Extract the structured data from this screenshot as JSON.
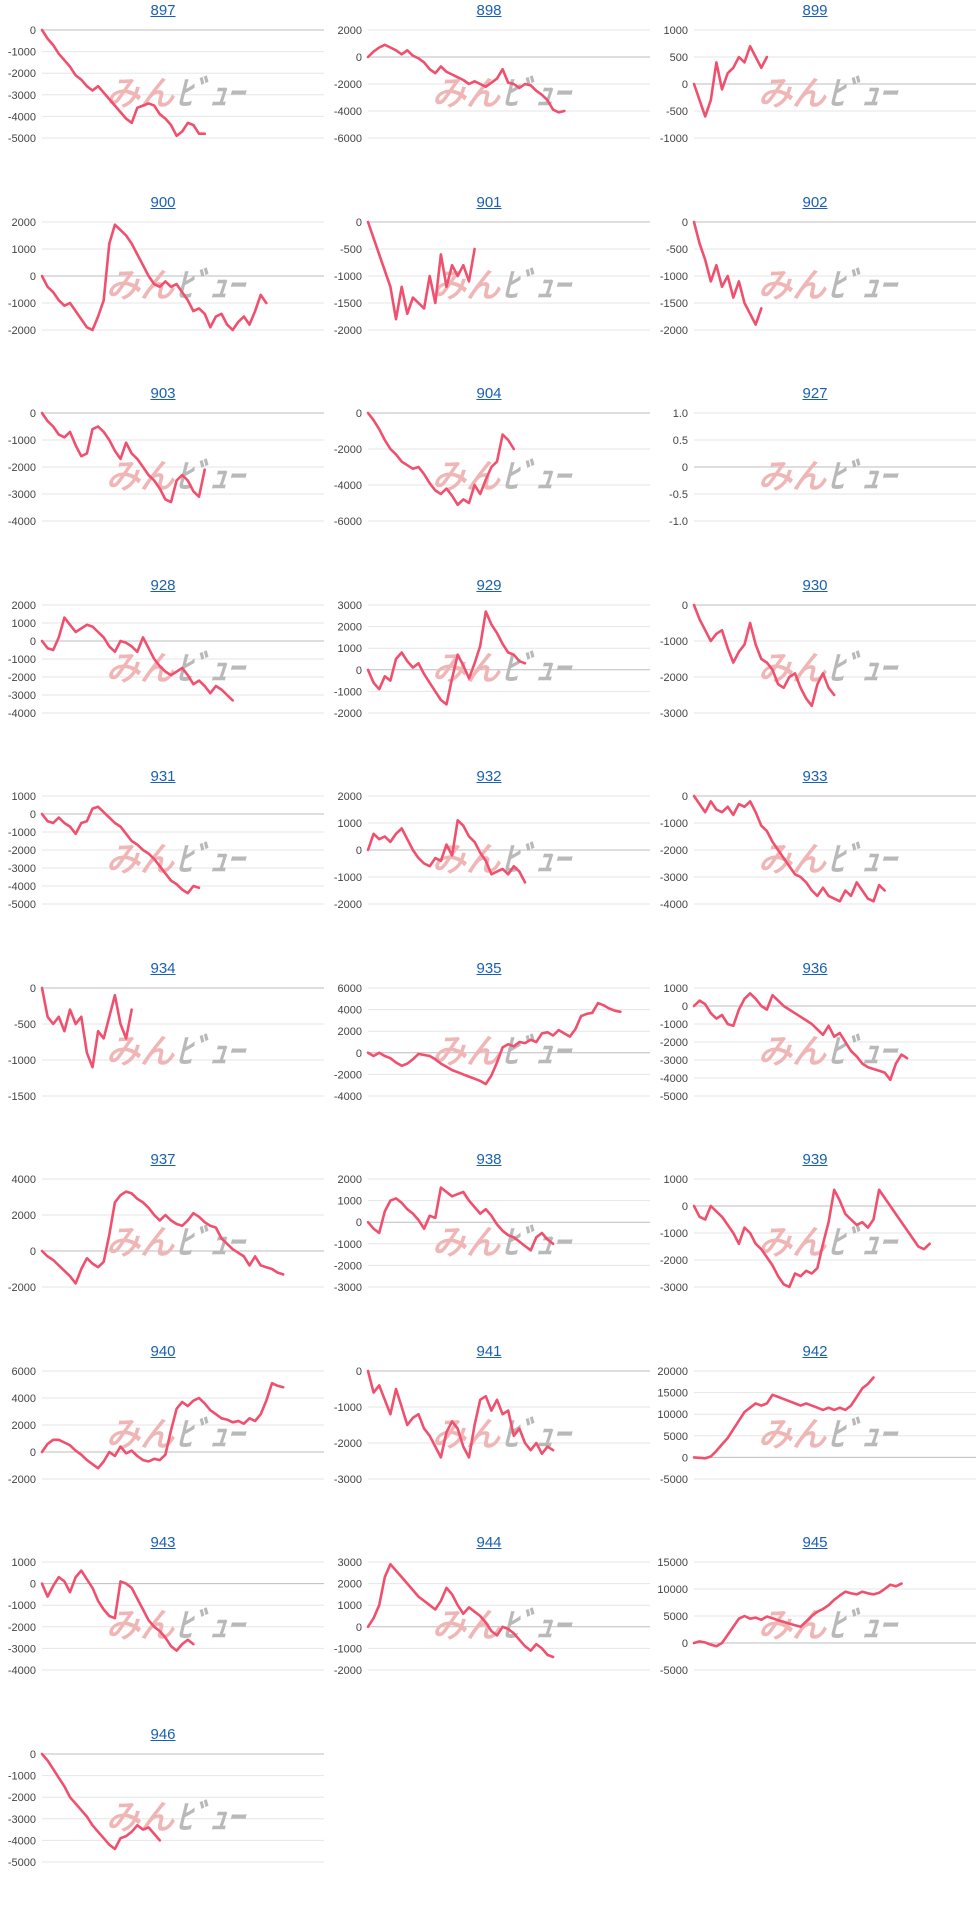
{
  "watermark": {
    "part1": "みん",
    "part2": "ﾋﾞｭｰ",
    "color1": "#f0b6b6",
    "color2": "#b9b9b9"
  },
  "line_color": "#f0506e",
  "chart_data": [
    {
      "type": "line",
      "title": "897",
      "yticks": [
        "0",
        "-1000",
        "-2000",
        "-3000",
        "-4000",
        "-5000"
      ],
      "ylim": [
        -5000,
        0
      ],
      "values": [
        0,
        -400,
        -700,
        -1100,
        -1400,
        -1700,
        -2100,
        -2300,
        -2600,
        -2800,
        -2600,
        -2900,
        -3200,
        -3500,
        -3800,
        -4100,
        -4300,
        -3600,
        -3500,
        -3400,
        -3500,
        -3900,
        -4100,
        -4400,
        -4900,
        -4700,
        -4300,
        -4400,
        -4800,
        -4800
      ]
    },
    {
      "type": "line",
      "title": "898",
      "yticks": [
        "2000",
        "0",
        "-2000",
        "-4000",
        "-6000"
      ],
      "ylim": [
        -6000,
        2000
      ],
      "values": [
        0,
        400,
        700,
        900,
        700,
        500,
        200,
        500,
        100,
        -100,
        -400,
        -900,
        -1200,
        -700,
        -1100,
        -1300,
        -1500,
        -1700,
        -2000,
        -1800,
        -2000,
        -2200,
        -1900,
        -1600,
        -900,
        -1900,
        -2000,
        -2300,
        -2000,
        -2100,
        -2500,
        -2800,
        -3200,
        -3900,
        -4100,
        -4000
      ]
    },
    {
      "type": "line",
      "title": "899",
      "yticks": [
        "1000",
        "500",
        "0",
        "-500",
        "-1000"
      ],
      "ylim": [
        -1000,
        1000
      ],
      "values": [
        0,
        -300,
        -600,
        -300,
        400,
        -100,
        200,
        300,
        500,
        400,
        700,
        500,
        300,
        500
      ]
    },
    {
      "type": "line",
      "title": "900",
      "yticks": [
        "2000",
        "1000",
        "0",
        "-1000",
        "-2000"
      ],
      "ylim": [
        -2000,
        2000
      ],
      "values": [
        0,
        -400,
        -600,
        -900,
        -1100,
        -1000,
        -1300,
        -1600,
        -1900,
        -2000,
        -1500,
        -900,
        1200,
        1900,
        1700,
        1500,
        1200,
        800,
        400,
        0,
        -300,
        -400,
        -200,
        -400,
        -300,
        -600,
        -900,
        -1300,
        -1200,
        -1400,
        -1900,
        -1500,
        -1400,
        -1800,
        -2000,
        -1700,
        -1500,
        -1800,
        -1300,
        -700,
        -1000
      ]
    },
    {
      "type": "line",
      "title": "901",
      "yticks": [
        "0",
        "-500",
        "-1000",
        "-1500",
        "-2000"
      ],
      "ylim": [
        -2000,
        0
      ],
      "values": [
        0,
        -300,
        -600,
        -900,
        -1200,
        -1800,
        -1200,
        -1700,
        -1400,
        -1500,
        -1600,
        -1000,
        -1500,
        -600,
        -1200,
        -800,
        -1000,
        -800,
        -1100,
        -500
      ]
    },
    {
      "type": "line",
      "title": "902",
      "yticks": [
        "0",
        "-500",
        "-1000",
        "-1500",
        "-2000"
      ],
      "ylim": [
        -2000,
        0
      ],
      "values": [
        0,
        -400,
        -700,
        -1100,
        -800,
        -1200,
        -1000,
        -1400,
        -1100,
        -1500,
        -1700,
        -1900,
        -1600
      ]
    },
    {
      "type": "line",
      "title": "903",
      "yticks": [
        "0",
        "-1000",
        "-2000",
        "-3000",
        "-4000"
      ],
      "ylim": [
        -4000,
        0
      ],
      "values": [
        0,
        -300,
        -500,
        -800,
        -900,
        -700,
        -1200,
        -1600,
        -1500,
        -600,
        -500,
        -700,
        -1000,
        -1400,
        -1700,
        -1100,
        -1500,
        -1700,
        -2000,
        -2300,
        -2500,
        -2800,
        -3200,
        -3300,
        -2500,
        -2300,
        -2500,
        -2900,
        -3100,
        -2100
      ]
    },
    {
      "type": "line",
      "title": "904",
      "yticks": [
        "0",
        "-2000",
        "-4000",
        "-6000"
      ],
      "ylim": [
        -6000,
        0
      ],
      "values": [
        0,
        -400,
        -900,
        -1500,
        -2000,
        -2300,
        -2700,
        -2900,
        -3100,
        -3000,
        -3400,
        -3900,
        -4300,
        -4500,
        -4200,
        -4600,
        -5100,
        -4800,
        -5000,
        -4000,
        -4500,
        -3700,
        -3000,
        -2700,
        -1200,
        -1500,
        -2000
      ]
    },
    {
      "type": "line",
      "title": "927",
      "yticks": [
        "1.0",
        "0.5",
        "0",
        "-0.5",
        "-1.0"
      ],
      "ylim": [
        -1,
        1
      ],
      "values": []
    },
    {
      "type": "line",
      "title": "928",
      "yticks": [
        "2000",
        "1000",
        "0",
        "-1000",
        "-2000",
        "-3000",
        "-4000"
      ],
      "ylim": [
        -4000,
        2000
      ],
      "values": [
        0,
        -400,
        -500,
        200,
        1300,
        900,
        500,
        700,
        900,
        800,
        500,
        200,
        -300,
        -600,
        0,
        -100,
        -300,
        -600,
        200,
        -400,
        -1000,
        -1400,
        -1700,
        -1900,
        -1700,
        -1500,
        -1900,
        -2400,
        -2200,
        -2500,
        -2900,
        -2500,
        -2700,
        -3000,
        -3300
      ]
    },
    {
      "type": "line",
      "title": "929",
      "yticks": [
        "3000",
        "2000",
        "1000",
        "0",
        "-1000",
        "-2000"
      ],
      "ylim": [
        -2000,
        3000
      ],
      "values": [
        0,
        -600,
        -900,
        -300,
        -500,
        500,
        800,
        400,
        100,
        300,
        -200,
        -600,
        -1000,
        -1400,
        -1600,
        -400,
        700,
        200,
        -400,
        300,
        1100,
        2700,
        2100,
        1700,
        1200,
        800,
        700,
        400,
        300
      ]
    },
    {
      "type": "line",
      "title": "930",
      "yticks": [
        "0",
        "-1000",
        "-2000",
        "-3000"
      ],
      "ylim": [
        -3000,
        0
      ],
      "values": [
        0,
        -400,
        -700,
        -1000,
        -800,
        -700,
        -1200,
        -1600,
        -1300,
        -1100,
        -500,
        -1100,
        -1500,
        -1600,
        -1800,
        -2200,
        -2300,
        -2000,
        -1900,
        -2300,
        -2600,
        -2800,
        -2200,
        -1900,
        -2300,
        -2500
      ]
    },
    {
      "type": "line",
      "title": "931",
      "yticks": [
        "1000",
        "0",
        "-1000",
        "-2000",
        "-3000",
        "-4000",
        "-5000"
      ],
      "ylim": [
        -5000,
        1000
      ],
      "values": [
        0,
        -400,
        -500,
        -200,
        -500,
        -700,
        -1100,
        -500,
        -400,
        300,
        400,
        100,
        -200,
        -500,
        -700,
        -1100,
        -1500,
        -1700,
        -2000,
        -2200,
        -2500,
        -2900,
        -3300,
        -3700,
        -3900,
        -4200,
        -4400,
        -4000,
        -4100
      ]
    },
    {
      "type": "line",
      "title": "932",
      "yticks": [
        "2000",
        "1000",
        "0",
        "-1000",
        "-2000"
      ],
      "ylim": [
        -2000,
        2000
      ],
      "values": [
        0,
        600,
        400,
        500,
        300,
        600,
        800,
        400,
        0,
        -300,
        -500,
        -600,
        -300,
        -400,
        200,
        -200,
        1100,
        900,
        500,
        300,
        -100,
        -400,
        -900,
        -800,
        -700,
        -900,
        -600,
        -800,
        -1200
      ]
    },
    {
      "type": "line",
      "title": "933",
      "yticks": [
        "0",
        "-1000",
        "-2000",
        "-3000",
        "-4000"
      ],
      "ylim": [
        -4000,
        0
      ],
      "values": [
        0,
        -300,
        -600,
        -200,
        -500,
        -600,
        -400,
        -700,
        -300,
        -400,
        -200,
        -600,
        -1100,
        -1300,
        -1700,
        -2000,
        -2300,
        -2600,
        -2900,
        -3000,
        -3200,
        -3500,
        -3700,
        -3400,
        -3700,
        -3800,
        -3900,
        -3500,
        -3700,
        -3200,
        -3500,
        -3800,
        -3900,
        -3300,
        -3500
      ]
    },
    {
      "type": "line",
      "title": "934",
      "yticks": [
        "0",
        "-500",
        "-1000",
        "-1500"
      ],
      "ylim": [
        -1500,
        0
      ],
      "values": [
        0,
        -400,
        -500,
        -400,
        -600,
        -300,
        -500,
        -400,
        -900,
        -1100,
        -600,
        -700,
        -400,
        -100,
        -500,
        -700,
        -300
      ]
    },
    {
      "type": "line",
      "title": "935",
      "yticks": [
        "6000",
        "4000",
        "2000",
        "0",
        "-2000",
        "-4000"
      ],
      "ylim": [
        -4000,
        6000
      ],
      "values": [
        0,
        -300,
        0,
        -300,
        -500,
        -900,
        -1200,
        -1000,
        -600,
        -100,
        -200,
        -300,
        -600,
        -1000,
        -1300,
        -1600,
        -1800,
        -2000,
        -2200,
        -2400,
        -2600,
        -2900,
        -2100,
        -900,
        500,
        800,
        600,
        1000,
        900,
        1200,
        1000,
        1800,
        1900,
        1600,
        2100,
        1800,
        1500,
        2200,
        3400,
        3600,
        3700,
        4600,
        4400,
        4100,
        3900,
        3800
      ]
    },
    {
      "type": "line",
      "title": "936",
      "yticks": [
        "1000",
        "0",
        "-1000",
        "-2000",
        "-3000",
        "-4000",
        "-5000"
      ],
      "ylim": [
        -5000,
        1000
      ],
      "values": [
        0,
        300,
        100,
        -400,
        -700,
        -500,
        -1000,
        -1100,
        -200,
        400,
        700,
        400,
        0,
        -200,
        600,
        300,
        0,
        -200,
        -400,
        -600,
        -800,
        -1000,
        -1300,
        -1600,
        -1100,
        -1700,
        -1500,
        -2000,
        -2500,
        -2800,
        -3200,
        -3400,
        -3500,
        -3600,
        -3700,
        -4100,
        -3200,
        -2700,
        -2900
      ]
    },
    {
      "type": "line",
      "title": "937",
      "yticks": [
        "4000",
        "2000",
        "0",
        "-2000"
      ],
      "ylim": [
        -2000,
        4000
      ],
      "values": [
        0,
        -300,
        -500,
        -800,
        -1100,
        -1400,
        -1800,
        -1000,
        -400,
        -700,
        -900,
        -600,
        900,
        2700,
        3100,
        3300,
        3200,
        2900,
        2700,
        2400,
        2000,
        1700,
        2000,
        1700,
        1500,
        1400,
        1700,
        2100,
        1900,
        1600,
        1400,
        1300,
        700,
        400,
        100,
        -100,
        -300,
        -800,
        -300,
        -800,
        -900,
        -1000,
        -1200,
        -1300
      ]
    },
    {
      "type": "line",
      "title": "938",
      "yticks": [
        "2000",
        "1000",
        "0",
        "-1000",
        "-2000",
        "-3000"
      ],
      "ylim": [
        -3000,
        2000
      ],
      "values": [
        0,
        -300,
        -500,
        500,
        1000,
        1100,
        900,
        600,
        400,
        100,
        -300,
        300,
        200,
        1600,
        1400,
        1200,
        1300,
        1400,
        1000,
        700,
        400,
        600,
        300,
        -100,
        -400,
        -600,
        -700,
        -900,
        -1100,
        -1300,
        -700,
        -500,
        -800,
        -1000
      ]
    },
    {
      "type": "line",
      "title": "939",
      "yticks": [
        "1000",
        "0",
        "-1000",
        "-2000",
        "-3000"
      ],
      "ylim": [
        -3000,
        1000
      ],
      "values": [
        0,
        -400,
        -500,
        0,
        -200,
        -400,
        -700,
        -1000,
        -1400,
        -800,
        -1000,
        -1400,
        -1600,
        -1900,
        -2200,
        -2600,
        -2900,
        -3000,
        -2500,
        -2600,
        -2400,
        -2500,
        -2300,
        -1400,
        -600,
        600,
        200,
        -300,
        -500,
        -700,
        -600,
        -800,
        -500,
        600,
        300,
        0,
        -300,
        -600,
        -900,
        -1200,
        -1500,
        -1600,
        -1400
      ]
    },
    {
      "type": "line",
      "title": "940",
      "yticks": [
        "6000",
        "4000",
        "2000",
        "0",
        "-2000"
      ],
      "ylim": [
        -2000,
        6000
      ],
      "values": [
        0,
        600,
        900,
        900,
        700,
        500,
        100,
        -200,
        -600,
        -900,
        -1200,
        -700,
        0,
        -300,
        400,
        -100,
        100,
        -300,
        -600,
        -700,
        -500,
        -600,
        -200,
        1600,
        3200,
        3700,
        3400,
        3800,
        4000,
        3600,
        3100,
        2800,
        2500,
        2400,
        2200,
        2300,
        2100,
        2500,
        2300,
        2800,
        3800,
        5100,
        4900,
        4800
      ]
    },
    {
      "type": "line",
      "title": "941",
      "yticks": [
        "0",
        "-1000",
        "-2000",
        "-3000"
      ],
      "ylim": [
        -3000,
        0
      ],
      "values": [
        0,
        -600,
        -400,
        -800,
        -1200,
        -500,
        -1000,
        -1500,
        -1300,
        -1200,
        -1600,
        -1800,
        -2100,
        -2400,
        -1700,
        -1400,
        -1600,
        -2100,
        -2400,
        -1500,
        -800,
        -700,
        -1100,
        -800,
        -1200,
        -1100,
        -1800,
        -1600,
        -2000,
        -2200,
        -2000,
        -2300,
        -2100,
        -2200
      ]
    },
    {
      "type": "line",
      "title": "942",
      "yticks": [
        "20000",
        "15000",
        "10000",
        "5000",
        "0",
        "-5000"
      ],
      "ylim": [
        -5000,
        20000
      ],
      "values": [
        0,
        -100,
        -200,
        200,
        1500,
        3000,
        4500,
        6500,
        8500,
        10500,
        11500,
        12500,
        12000,
        12500,
        14500,
        14000,
        13500,
        13000,
        12500,
        12000,
        12500,
        12000,
        11500,
        11000,
        11500,
        11000,
        11500,
        11000,
        12000,
        14000,
        16000,
        17000,
        18500
      ]
    },
    {
      "type": "line",
      "title": "943",
      "yticks": [
        "1000",
        "0",
        "-1000",
        "-2000",
        "-3000",
        "-4000"
      ],
      "ylim": [
        -4000,
        1000
      ],
      "values": [
        0,
        -600,
        -100,
        300,
        100,
        -400,
        300,
        600,
        200,
        -200,
        -800,
        -1200,
        -1500,
        -1600,
        100,
        0,
        -200,
        -700,
        -1200,
        -1700,
        -2000,
        -2200,
        -2500,
        -2900,
        -3100,
        -2800,
        -2600,
        -2800
      ]
    },
    {
      "type": "line",
      "title": "944",
      "yticks": [
        "3000",
        "2000",
        "1000",
        "0",
        "-1000",
        "-2000"
      ],
      "ylim": [
        -2000,
        3000
      ],
      "values": [
        0,
        400,
        1000,
        2300,
        2900,
        2600,
        2300,
        2000,
        1700,
        1400,
        1200,
        1000,
        800,
        1200,
        1800,
        1500,
        1000,
        600,
        900,
        700,
        500,
        200,
        -200,
        -400,
        0,
        -100,
        -300,
        -600,
        -900,
        -1100,
        -800,
        -1000,
        -1300,
        -1400
      ]
    },
    {
      "type": "line",
      "title": "945",
      "yticks": [
        "15000",
        "10000",
        "5000",
        "0",
        "-5000"
      ],
      "ylim": [
        -5000,
        15000
      ],
      "values": [
        0,
        300,
        100,
        -300,
        -600,
        0,
        1500,
        3000,
        4500,
        5000,
        4500,
        4700,
        4300,
        4900,
        4600,
        4200,
        3900,
        3600,
        3300,
        3000,
        4000,
        5000,
        5800,
        6300,
        7000,
        8000,
        8800,
        9500,
        9200,
        9000,
        9500,
        9200,
        9000,
        9300,
        10000,
        10800,
        10500,
        11000
      ]
    },
    {
      "type": "line",
      "title": "946",
      "yticks": [
        "0",
        "-1000",
        "-2000",
        "-3000",
        "-4000",
        "-5000"
      ],
      "ylim": [
        -5000,
        0
      ],
      "values": [
        0,
        -300,
        -700,
        -1100,
        -1500,
        -2000,
        -2300,
        -2600,
        -2900,
        -3300,
        -3600,
        -3900,
        -4200,
        -4400,
        -3900,
        -3800,
        -3600,
        -3300,
        -3500,
        -3400,
        -3700,
        -4000
      ]
    }
  ]
}
